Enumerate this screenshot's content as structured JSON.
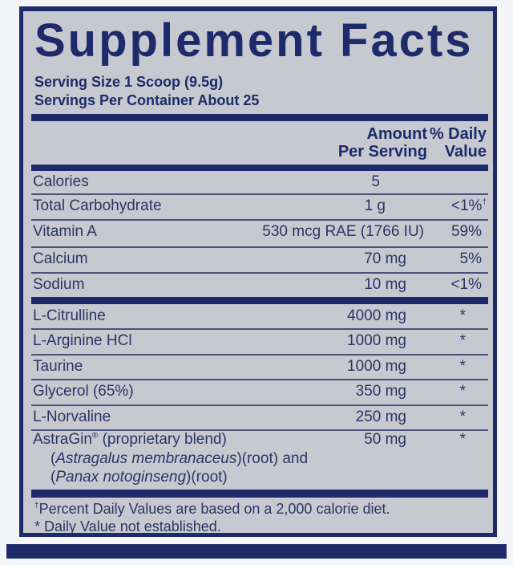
{
  "title": "Supplement Facts",
  "serving_size": "Serving Size 1 Scoop (9.5g)",
  "servings_per_container": "Servings Per Container About 25",
  "columns": {
    "amount_line1": "Amount",
    "amount_line2": "Per Serving",
    "dv_line1": "% Daily",
    "dv_line2": "Value"
  },
  "nutrients": [
    {
      "name": "Calories",
      "amount": "5",
      "dv": ""
    },
    {
      "name": "Total Carbohydrate",
      "amount": "1 g",
      "dv": "<1%",
      "dv_mark": "†"
    },
    {
      "name": "Vitamin A",
      "amount": "530 mcg RAE (1766 IU)",
      "dv": "59%"
    },
    {
      "name": "Calcium",
      "amount": "70 mg",
      "dv": "5%"
    },
    {
      "name": "Sodium",
      "amount": "10 mg",
      "dv": "<1%"
    }
  ],
  "ingredients": [
    {
      "name": "L-Citrulline",
      "amount": "4000 mg",
      "dv": "*"
    },
    {
      "name": "L-Arginine HCl",
      "amount": "1000 mg",
      "dv": "*"
    },
    {
      "name": "Taurine",
      "amount": "1000 mg",
      "dv": "*"
    },
    {
      "name": "Glycerol (65%)",
      "amount": "350 mg",
      "dv": "*"
    },
    {
      "name": "L-Norvaline",
      "amount": "250 mg",
      "dv": "*"
    }
  ],
  "blend": {
    "name": "AstraGin",
    "reg": "®",
    "name_suffix": " (proprietary blend)",
    "line2_italic": "Astragalus membranaceus",
    "line2_rest": ")(root) and",
    "line3_italic": "Panax notoginseng",
    "line3_rest": ")(root)",
    "open_paren": "(",
    "amount": "50 mg",
    "dv": "*"
  },
  "footnotes": {
    "dagger": "†",
    "line1": "Percent Daily Values are based on a 2,000 calorie diet.",
    "line2": "* Daily Value not established."
  },
  "colors": {
    "navy": "#1e2a6a",
    "panel": "#c6c9cf",
    "text": "#2b3566"
  }
}
